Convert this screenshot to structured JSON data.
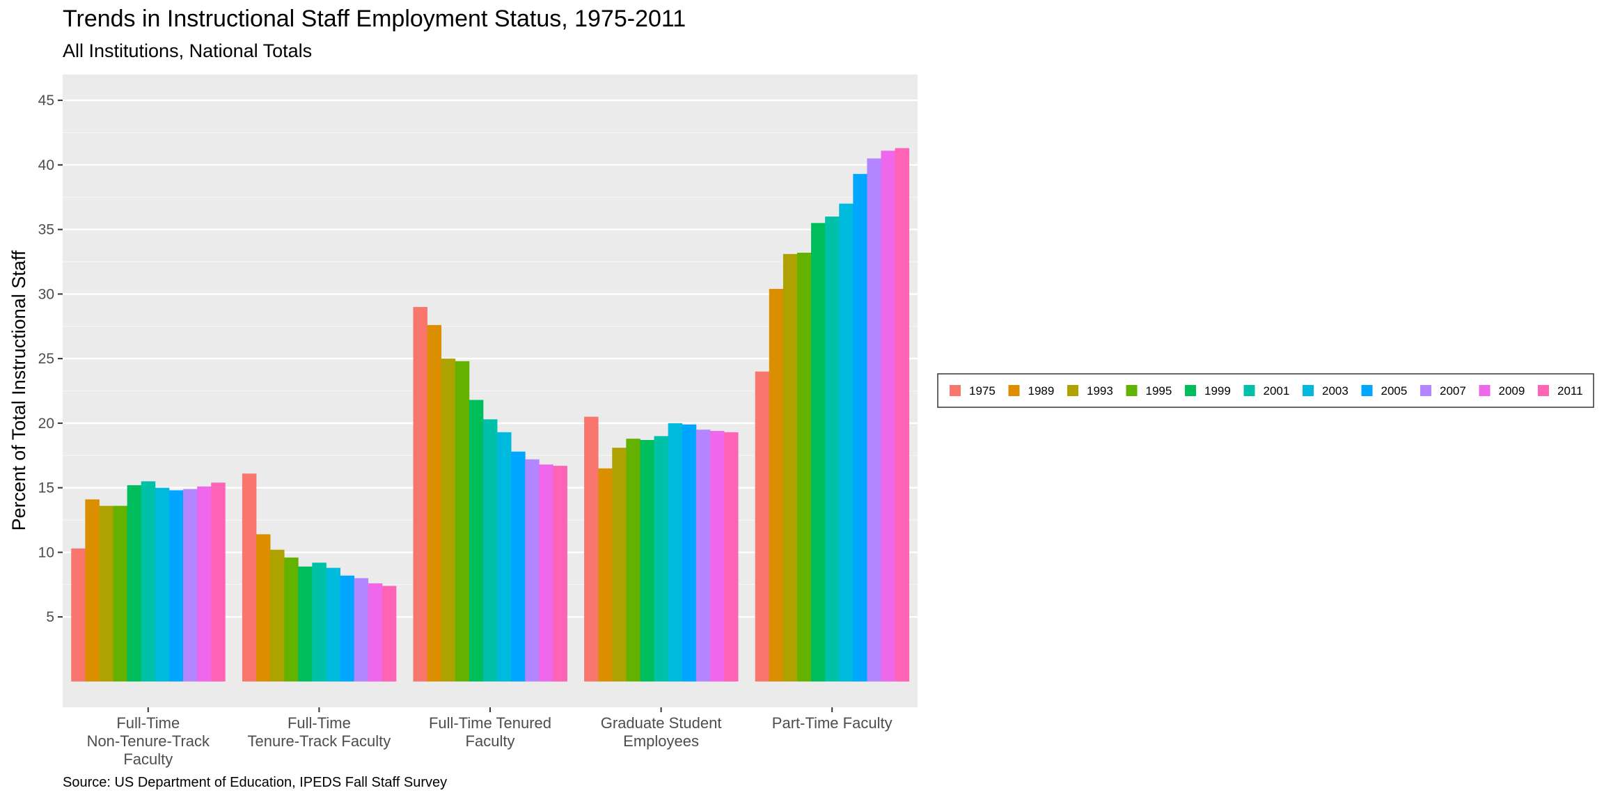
{
  "chart_data": {
    "type": "bar",
    "title": "Trends in Instructional Staff Employment Status, 1975-2011",
    "subtitle": "All Institutions, National Totals",
    "caption": "Source: US Department of Education, IPEDS Fall Staff Survey",
    "xlabel": "",
    "ylabel": "Percent of Total Instructional Staff",
    "ylim": [
      -2,
      47
    ],
    "yticks": [
      5,
      10,
      15,
      20,
      25,
      30,
      35,
      40,
      45
    ],
    "grid": true,
    "legend_position": "right",
    "categories": [
      [
        "Full-Time",
        "Non-Tenure-Track",
        "Faculty"
      ],
      [
        "Full-Time",
        "Tenure-Track Faculty"
      ],
      [
        "Full-Time Tenured",
        "Faculty"
      ],
      [
        "Graduate Student",
        "Employees"
      ],
      [
        "Part-Time Faculty"
      ]
    ],
    "series": [
      {
        "name": "1975",
        "color": "#F8766D",
        "values": [
          10.3,
          16.1,
          29.0,
          20.5,
          24.0
        ]
      },
      {
        "name": "1989",
        "color": "#DB8E00",
        "values": [
          14.1,
          11.4,
          27.6,
          16.5,
          30.4
        ]
      },
      {
        "name": "1993",
        "color": "#AEA200",
        "values": [
          13.6,
          10.2,
          25.0,
          18.1,
          33.1
        ]
      },
      {
        "name": "1995",
        "color": "#64B200",
        "values": [
          13.6,
          9.6,
          24.8,
          18.8,
          33.2
        ]
      },
      {
        "name": "1999",
        "color": "#00BD5C",
        "values": [
          15.2,
          8.9,
          21.8,
          18.7,
          35.5
        ]
      },
      {
        "name": "2001",
        "color": "#00C1A7",
        "values": [
          15.5,
          9.2,
          20.3,
          19.0,
          36.0
        ]
      },
      {
        "name": "2003",
        "color": "#00BADE",
        "values": [
          15.0,
          8.8,
          19.3,
          20.0,
          37.0
        ]
      },
      {
        "name": "2005",
        "color": "#00A6FF",
        "values": [
          14.8,
          8.2,
          17.8,
          19.9,
          39.3
        ]
      },
      {
        "name": "2007",
        "color": "#B385FF",
        "values": [
          14.9,
          8.0,
          17.2,
          19.5,
          40.5
        ]
      },
      {
        "name": "2009",
        "color": "#EF67EB",
        "values": [
          15.1,
          7.6,
          16.8,
          19.4,
          41.1
        ]
      },
      {
        "name": "2011",
        "color": "#FF63B6",
        "values": [
          15.4,
          7.4,
          16.7,
          19.3,
          41.3
        ]
      }
    ]
  }
}
